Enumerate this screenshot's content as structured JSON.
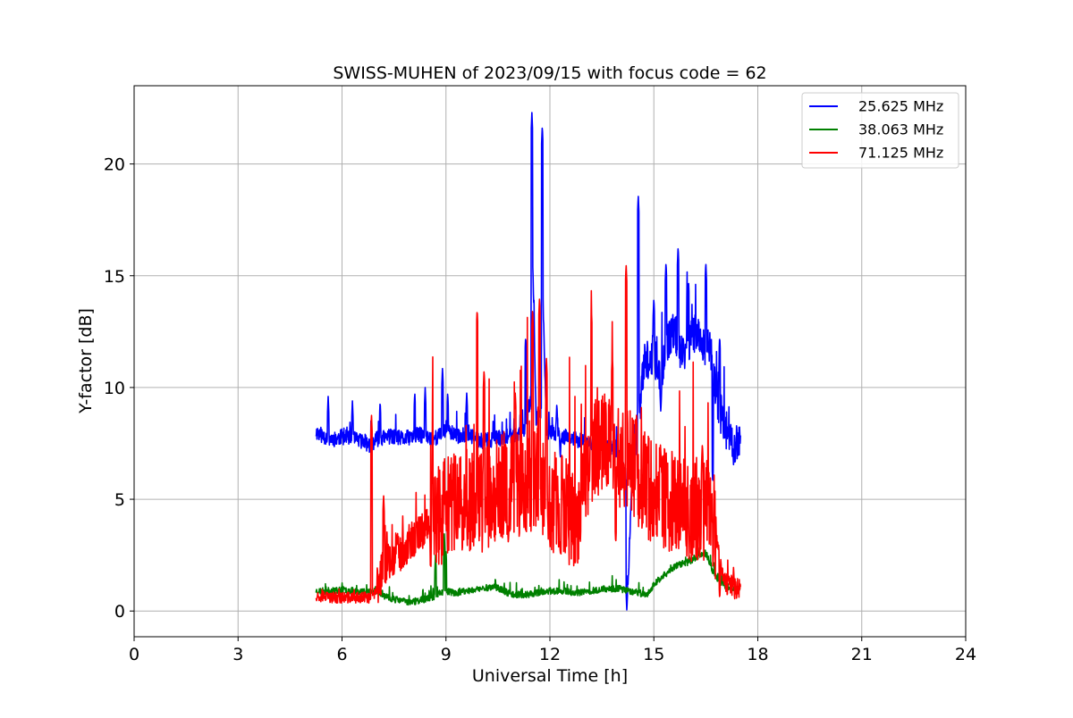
{
  "chart_data": {
    "type": "line",
    "title": "SWISS-MUHEN of 2023/09/15 with focus code = 62",
    "xlabel": "Universal Time [h]",
    "ylabel": "Y-factor [dB]",
    "xlim": [
      0,
      24
    ],
    "ylim": [
      -1.15,
      23.5
    ],
    "xticks": [
      0,
      3,
      6,
      9,
      12,
      15,
      18,
      21,
      24
    ],
    "yticks": [
      0,
      5,
      10,
      15,
      20
    ],
    "xtick_labels": [
      "0",
      "3",
      "6",
      "9",
      "12",
      "15",
      "18",
      "21",
      "24"
    ],
    "ytick_labels": [
      "0",
      "5",
      "10",
      "15",
      "20"
    ],
    "grid": true,
    "legend_position": "top-right",
    "series": [
      {
        "name": "25.625 MHz",
        "color": "#0000ff",
        "x": [
          5.25,
          5.5,
          5.8,
          6.0,
          6.3,
          6.6,
          6.8,
          7.0,
          7.4,
          7.8,
          8.2,
          8.6,
          8.9,
          9.0,
          9.3,
          9.6,
          10.0,
          10.4,
          10.8,
          11.1,
          11.3,
          11.45,
          11.5,
          11.6,
          11.75,
          11.8,
          11.9,
          12.1,
          12.4,
          12.7,
          13.0,
          13.3,
          13.6,
          13.9,
          14.2,
          14.25,
          14.4,
          14.55,
          14.7,
          15.0,
          15.2,
          15.4,
          15.6,
          15.8,
          16.0,
          16.2,
          16.5,
          16.6,
          16.8,
          17.0,
          17.2,
          17.5
        ],
        "y": [
          8.0,
          7.8,
          7.7,
          7.8,
          7.7,
          7.6,
          7.4,
          7.7,
          7.8,
          7.7,
          7.9,
          7.7,
          7.9,
          8.2,
          7.8,
          7.9,
          7.6,
          7.7,
          7.8,
          7.9,
          8.2,
          9.5,
          16.0,
          8.5,
          9.0,
          14.0,
          7.9,
          8.0,
          7.8,
          7.7,
          7.6,
          7.5,
          7.4,
          7.3,
          6.0,
          1.0,
          7.5,
          8.0,
          11.0,
          11.5,
          10.5,
          12.0,
          12.5,
          11.5,
          12.0,
          12.5,
          11.8,
          12.0,
          9.5,
          8.5,
          7.5,
          7.5
        ],
        "spikes": [
          [
            5.6,
            9.6
          ],
          [
            6.3,
            9.4
          ],
          [
            7.1,
            9.4
          ],
          [
            8.1,
            9.8
          ],
          [
            8.4,
            10.0
          ],
          [
            8.9,
            10.9
          ],
          [
            9.05,
            9.8
          ],
          [
            9.6,
            9.8
          ],
          [
            11.3,
            12.3
          ],
          [
            11.48,
            22.3
          ],
          [
            11.78,
            21.7
          ],
          [
            12.2,
            9.3
          ],
          [
            14.55,
            18.6
          ],
          [
            15.0,
            14.0
          ],
          [
            15.35,
            15.6
          ],
          [
            15.7,
            16.3
          ],
          [
            16.0,
            14.8
          ],
          [
            16.5,
            15.6
          ],
          [
            16.9,
            12.3
          ],
          [
            17.3,
            10.9
          ]
        ],
        "dips": [
          [
            9.9,
            6.9
          ],
          [
            12.3,
            6.8
          ],
          [
            14.22,
            0.0
          ],
          [
            15.2,
            8.9
          ],
          [
            16.7,
            5.7
          ],
          [
            17.3,
            6.5
          ]
        ]
      },
      {
        "name": "38.063 MHz",
        "color": "#008000",
        "x": [
          5.25,
          5.6,
          6.0,
          6.4,
          6.8,
          7.0,
          7.3,
          7.6,
          8.0,
          8.3,
          8.6,
          8.8,
          9.0,
          9.3,
          9.6,
          10.0,
          10.4,
          10.8,
          11.2,
          11.6,
          12.0,
          12.4,
          12.8,
          13.2,
          13.6,
          14.0,
          14.3,
          14.6,
          14.8,
          15.0,
          15.3,
          15.6,
          16.0,
          16.3,
          16.5,
          16.7,
          16.9,
          17.1,
          17.3,
          17.5
        ],
        "y": [
          0.9,
          0.9,
          0.95,
          0.9,
          0.85,
          0.9,
          0.6,
          0.5,
          0.4,
          0.5,
          0.6,
          0.8,
          0.9,
          0.8,
          0.9,
          1.0,
          1.1,
          0.8,
          0.7,
          0.8,
          0.9,
          0.9,
          0.8,
          0.9,
          1.0,
          1.0,
          0.9,
          0.8,
          0.7,
          1.2,
          1.6,
          2.0,
          2.2,
          2.5,
          2.6,
          1.8,
          1.3,
          1.1,
          1.0,
          1.0
        ],
        "spikes": [
          [
            8.7,
            2.6
          ],
          [
            8.95,
            3.5
          ],
          [
            9.0,
            2.8
          ]
        ],
        "dips": []
      },
      {
        "name": "71.125 MHz",
        "color": "#ff0000",
        "x": [
          5.25,
          5.6,
          6.0,
          6.4,
          6.8,
          6.85,
          6.9,
          7.0,
          7.2,
          7.5,
          7.8,
          8.1,
          8.4,
          8.7,
          9.0,
          9.3,
          9.6,
          10.0,
          10.4,
          10.8,
          11.2,
          11.6,
          12.0,
          12.4,
          12.8,
          13.2,
          13.6,
          14.0,
          14.4,
          14.8,
          15.2,
          15.6,
          16.0,
          16.4,
          16.7,
          16.9,
          17.1,
          17.3,
          17.5
        ],
        "y": [
          0.7,
          0.6,
          0.6,
          0.6,
          0.6,
          0.6,
          0.6,
          1.0,
          2.0,
          2.5,
          2.8,
          3.2,
          3.8,
          4.2,
          4.5,
          4.8,
          5.0,
          4.8,
          5.5,
          5.8,
          5.5,
          6.0,
          5.0,
          4.5,
          4.0,
          7.0,
          8.0,
          7.0,
          6.5,
          5.5,
          5.2,
          4.8,
          4.5,
          4.6,
          4.2,
          2.2,
          1.2,
          1.0,
          1.0
        ],
        "spikes": [
          [
            6.85,
            8.8
          ],
          [
            7.2,
            5.2
          ],
          [
            8.6,
            6.3
          ],
          [
            9.9,
            13.5
          ],
          [
            10.1,
            10.8
          ],
          [
            11.0,
            9.8
          ],
          [
            11.5,
            13.5
          ],
          [
            11.7,
            14.0
          ],
          [
            11.9,
            11.3
          ],
          [
            13.2,
            13.4
          ],
          [
            13.8,
            11.5
          ],
          [
            14.2,
            15.5
          ],
          [
            14.5,
            8.8
          ],
          [
            15.2,
            7.2
          ],
          [
            16.4,
            7.5
          ],
          [
            17.3,
            2.0
          ]
        ],
        "dips": [
          [
            9.3,
            3.2
          ],
          [
            10.8,
            3.0
          ],
          [
            12.3,
            2.5
          ],
          [
            13.9,
            3.0
          ],
          [
            15.5,
            3.2
          ],
          [
            16.9,
            0.5
          ]
        ]
      }
    ]
  }
}
